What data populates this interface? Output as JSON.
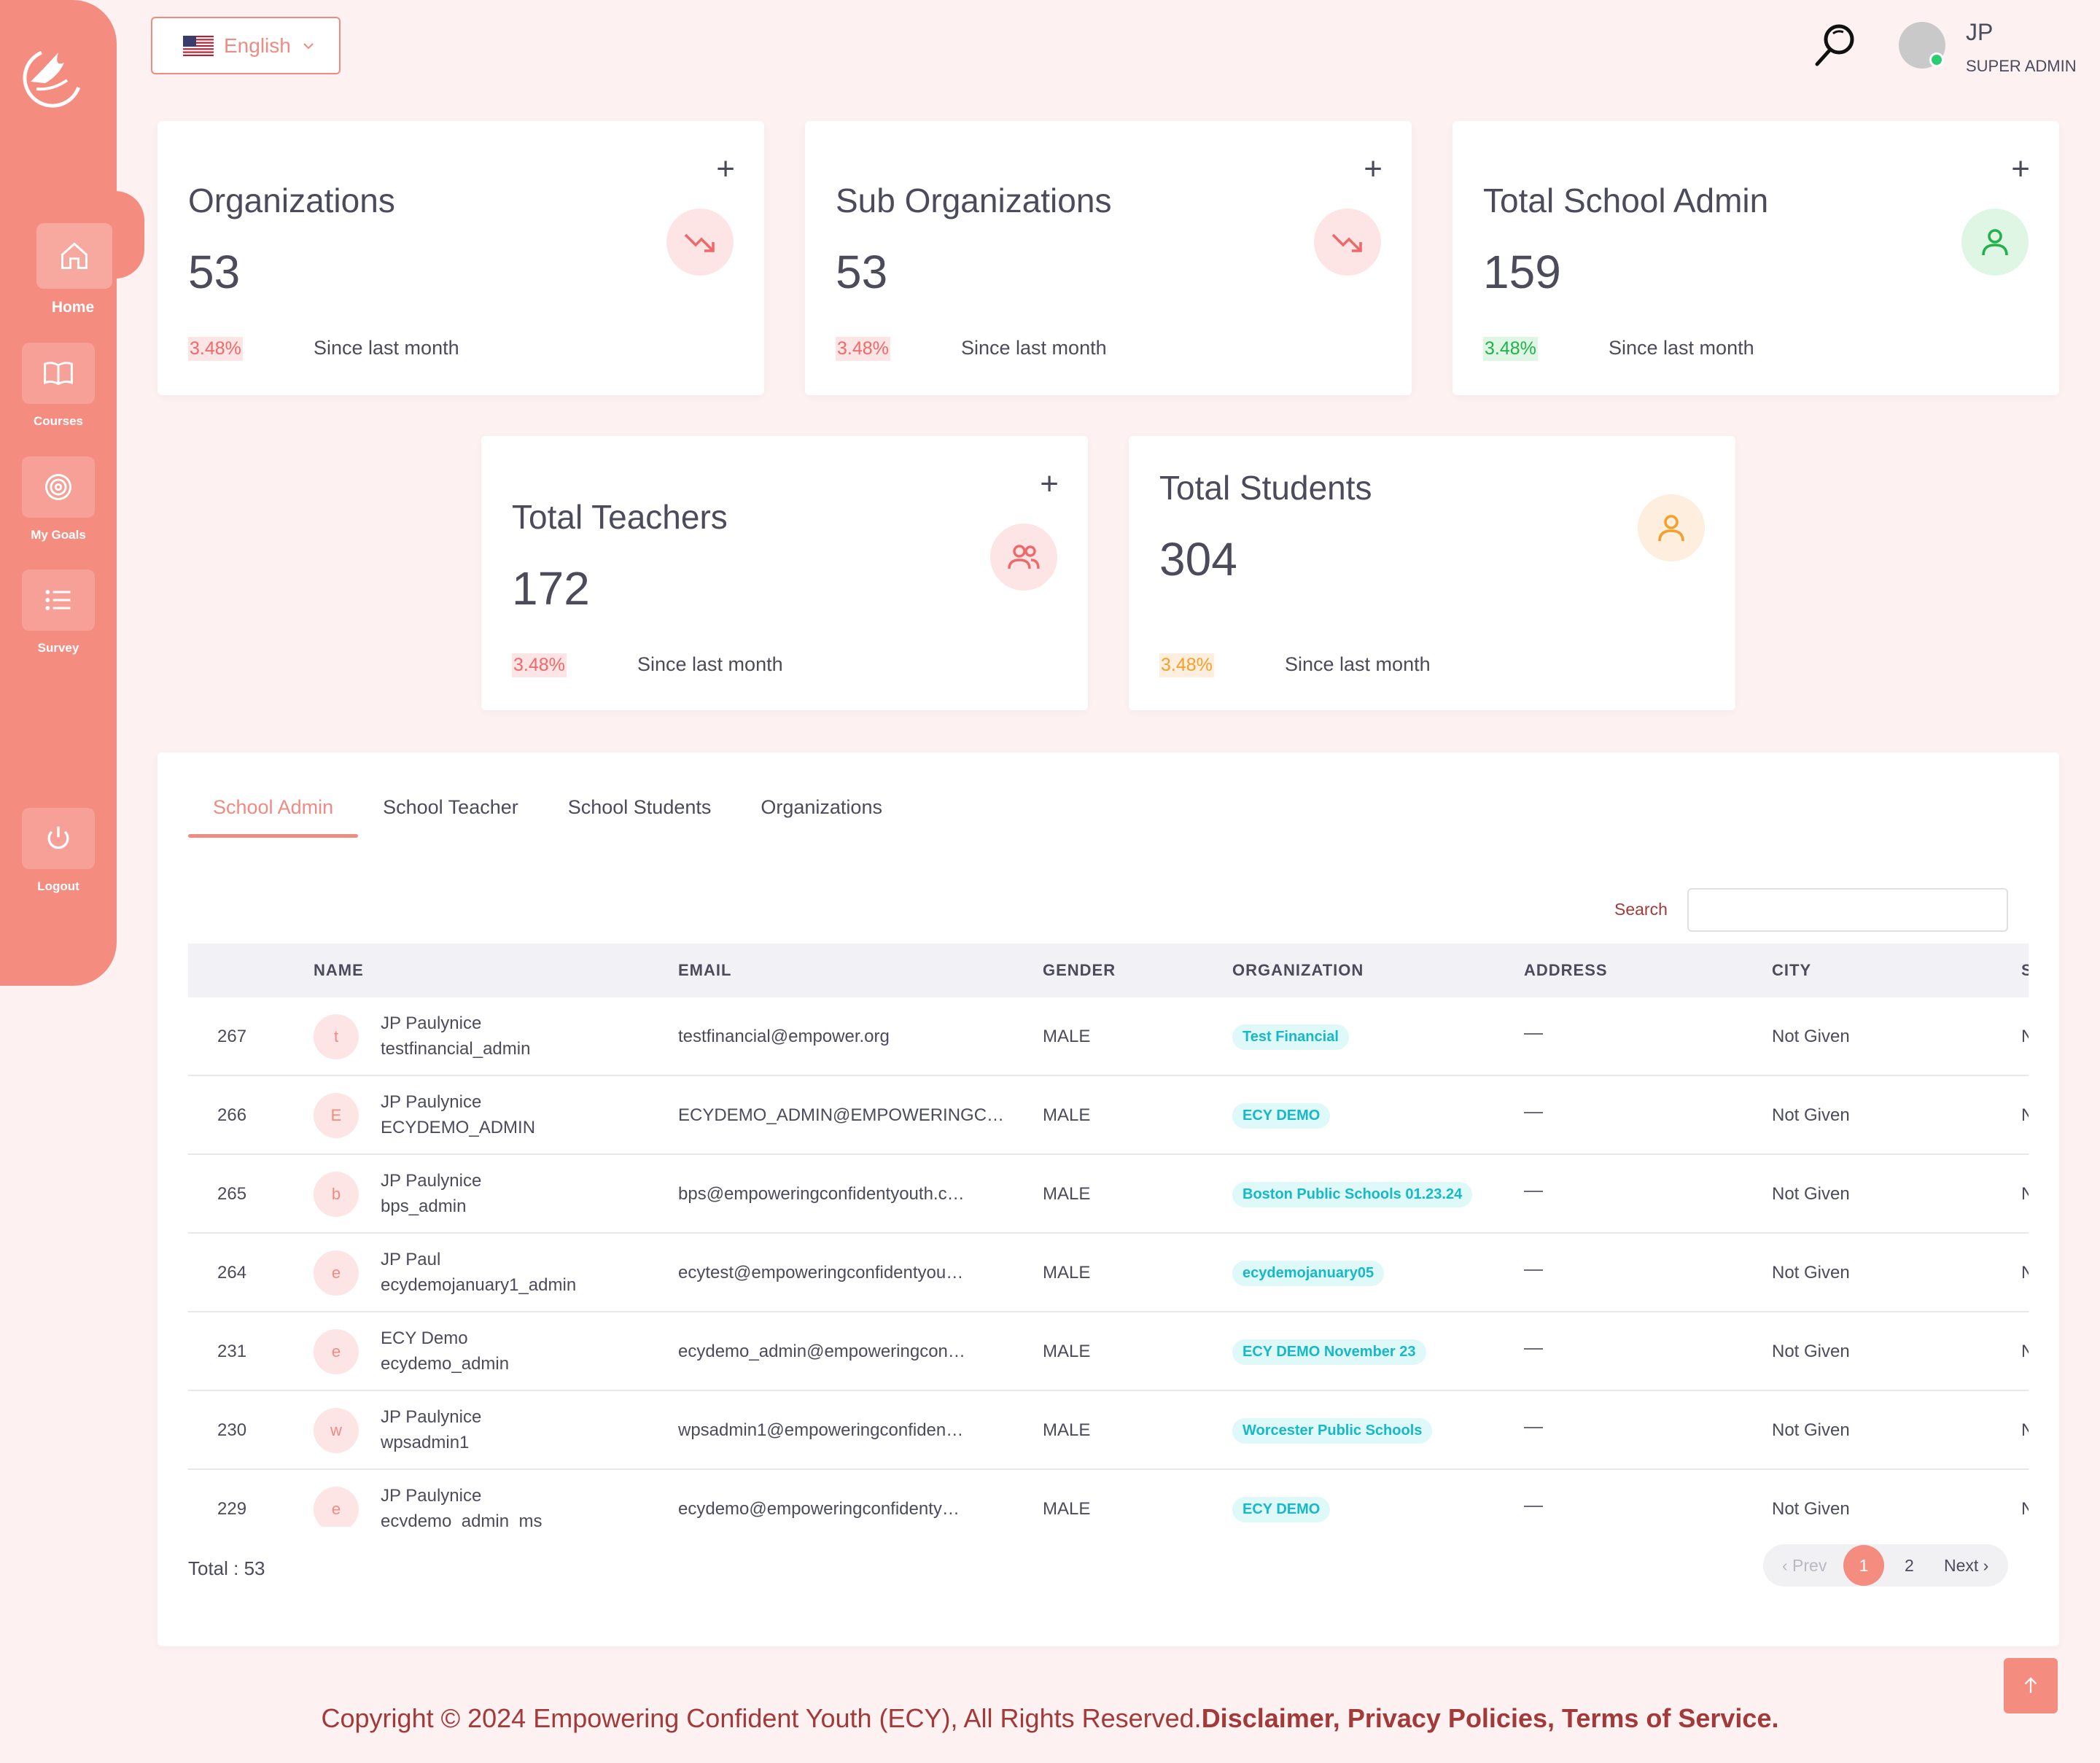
{
  "language": {
    "label": "English"
  },
  "user": {
    "initials": "JP",
    "role": "SUPER ADMIN"
  },
  "sidebar": {
    "items": [
      {
        "label": "Home",
        "icon": "home-icon"
      },
      {
        "label": "Courses",
        "icon": "book-icon"
      },
      {
        "label": "My Goals",
        "icon": "target-icon"
      },
      {
        "label": "Survey",
        "icon": "list-icon"
      },
      {
        "label": "Logout",
        "icon": "power-icon"
      }
    ]
  },
  "stats": [
    {
      "title": "Organizations",
      "value": "53",
      "pct": "3.48%",
      "since": "Since last month",
      "plus": "+"
    },
    {
      "title": "Sub Organizations",
      "value": "53",
      "pct": "3.48%",
      "since": "Since last month",
      "plus": "+"
    },
    {
      "title": "Total School Admin",
      "value": "159",
      "pct": "3.48%",
      "since": "Since last month",
      "plus": "+"
    },
    {
      "title": "Total Teachers",
      "value": "172",
      "pct": "3.48%",
      "since": "Since last month",
      "plus": "+"
    },
    {
      "title": "Total Students",
      "value": "304",
      "pct": "3.48%",
      "since": "Since last month"
    }
  ],
  "tabs": [
    "School Admin",
    "School Teacher",
    "School Students",
    "Organizations"
  ],
  "search": {
    "label": "Search",
    "value": ""
  },
  "table": {
    "headers": [
      "NAME",
      "EMAIL",
      "GENDER",
      "ORGANIZATION",
      "ADDRESS",
      "CITY",
      "S"
    ],
    "rows": [
      {
        "id": "267",
        "initial": "t",
        "name": "JP Paulynice",
        "username": "testfinancial_admin",
        "email": "testfinancial@empower.org",
        "gender": "MALE",
        "org": "Test Financial",
        "city": "Not Given",
        "s": "N"
      },
      {
        "id": "266",
        "initial": "E",
        "name": "JP Paulynice",
        "username": "ECYDEMO_ADMIN",
        "email": "ECYDEMO_ADMIN@EMPOWERINGC…",
        "gender": "MALE",
        "org": "ECY DEMO",
        "city": "Not Given",
        "s": "N"
      },
      {
        "id": "265",
        "initial": "b",
        "name": "JP Paulynice",
        "username": "bps_admin",
        "email": "bps@empoweringconfidentyouth.c…",
        "gender": "MALE",
        "org": "Boston Public Schools 01.23.24",
        "city": "Not Given",
        "s": "N"
      },
      {
        "id": "264",
        "initial": "e",
        "name": "JP Paul",
        "username": "ecydemojanuary1_admin",
        "email": "ecytest@empoweringconfidentyou…",
        "gender": "MALE",
        "org": "ecydemojanuary05",
        "city": "Not Given",
        "s": "N"
      },
      {
        "id": "231",
        "initial": "e",
        "name": "ECY Demo",
        "username": "ecydemo_admin",
        "email": "ecydemo_admin@empoweringcon…",
        "gender": "MALE",
        "org": "ECY DEMO November 23",
        "city": "Not Given",
        "s": "N"
      },
      {
        "id": "230",
        "initial": "w",
        "name": "JP Paulynice",
        "username": "wpsadmin1",
        "email": "wpsadmin1@empoweringconfiden…",
        "gender": "MALE",
        "org": "Worcester Public Schools",
        "city": "Not Given",
        "s": "N"
      },
      {
        "id": "229",
        "initial": "e",
        "name": "JP Paulynice",
        "username": "ecydemo_admin_ms",
        "email": "ecydemo@empoweringconfidenty…",
        "gender": "MALE",
        "org": "ECY DEMO",
        "city": "Not Given",
        "s": "N"
      }
    ]
  },
  "total": "Total : 53",
  "pager": {
    "prev": "‹ Prev",
    "page1": "1",
    "page2": "2",
    "next": "Next ›"
  },
  "footer": {
    "text": "Copyright © 2024 Empowering Confident Youth (ECY), All Rights Reserved.",
    "links": "Disclaimer, Privacy Policies, Terms of Service."
  },
  "colors": {
    "accent": "#f58c80",
    "red": "#ee6a6a",
    "green": "#22b14c",
    "orange": "#f3a02e",
    "teal": "#17b8c8"
  }
}
